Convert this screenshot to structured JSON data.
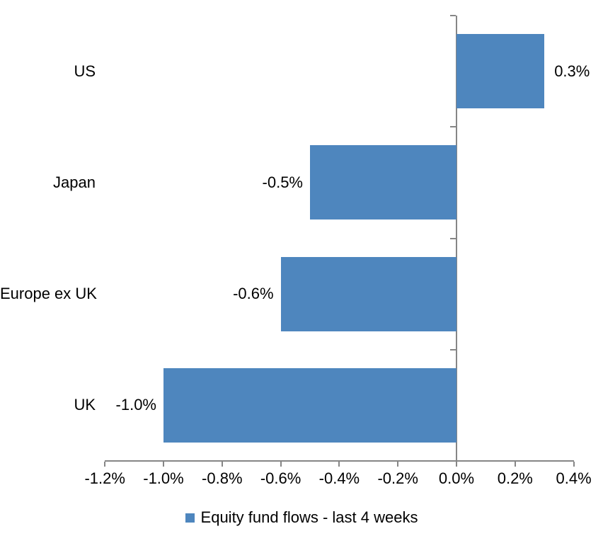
{
  "chart_data": {
    "type": "bar",
    "orientation": "horizontal",
    "categories": [
      "US",
      "Japan",
      "Europe ex UK",
      "UK"
    ],
    "series": [
      {
        "name": "Equity fund flows - last 4 weeks",
        "values": [
          0.3,
          -0.5,
          -0.6,
          -1.0
        ],
        "labels": [
          "0.3%",
          "-0.5%",
          "-0.6%",
          "-1.0%"
        ]
      }
    ],
    "unit": "%",
    "title": "",
    "xlabel": "",
    "ylabel": "",
    "xlim": [
      -1.2,
      0.4
    ],
    "x_ticks": [
      -1.2,
      -1.0,
      -0.8,
      -0.6,
      -0.4,
      -0.2,
      0.0,
      0.2,
      0.4
    ],
    "x_tick_labels": [
      "-1.2%",
      "-1.0%",
      "-0.8%",
      "-0.6%",
      "-0.4%",
      "-0.2%",
      "0.0%",
      "0.2%",
      "0.4%"
    ],
    "grid": false,
    "legend_position": "bottom",
    "bar_color": "#4E86BE",
    "axis_color": "#868686",
    "text_color": "#000000"
  },
  "legend": {
    "marker_icon": "legend-square-icon",
    "label": "Equity fund flows - last 4 weeks"
  }
}
